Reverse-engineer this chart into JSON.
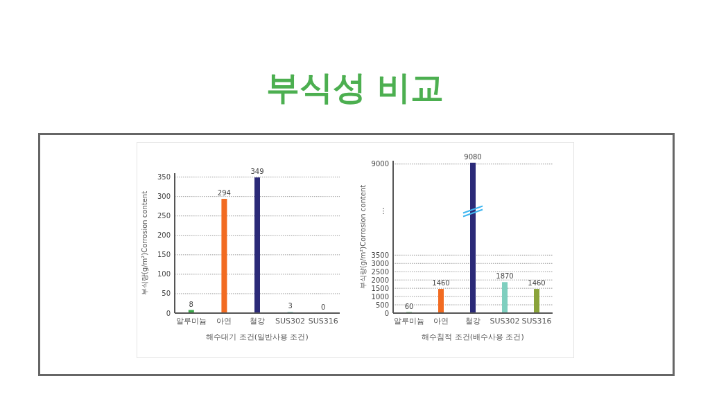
{
  "chart_data": [
    {
      "type": "bar",
      "title": "부식성 비교",
      "xlabel": "해수대기 조건(일반사용 조건)",
      "ylabel": "부식량(g/m²)Corrosion content",
      "categories": [
        "알루미늄",
        "아연",
        "철강",
        "SUS302",
        "SUS316"
      ],
      "values": [
        8,
        294,
        349,
        3,
        0
      ],
      "colors": [
        "#3aa84a",
        "#f26b21",
        "#2b2a78",
        "#7fcfbf",
        "#8aa33a"
      ],
      "data_labels": true,
      "ylim": [
        0,
        360
      ],
      "yticks": [
        0,
        50,
        100,
        150,
        200,
        250,
        300,
        350
      ],
      "grid": "y"
    },
    {
      "type": "bar",
      "xlabel": "해수침적 조건(배수사용 조건)",
      "ylabel": "부식량(g/m²)Corrosion content",
      "categories": [
        "알루미늄",
        "아연",
        "철강",
        "SUS302",
        "SUS316"
      ],
      "values": [
        60,
        1460,
        9080,
        1870,
        1460
      ],
      "colors": [
        "#3aa84a",
        "#f26b21",
        "#2b2a78",
        "#7fcfbf",
        "#8aa33a"
      ],
      "data_labels": true,
      "ylim": [
        0,
        9200
      ],
      "yticks": [
        0,
        500,
        1000,
        1500,
        2000,
        2500,
        3000,
        3500,
        9000
      ],
      "annotations": [
        "⋮"
      ],
      "grid": "y"
    }
  ]
}
